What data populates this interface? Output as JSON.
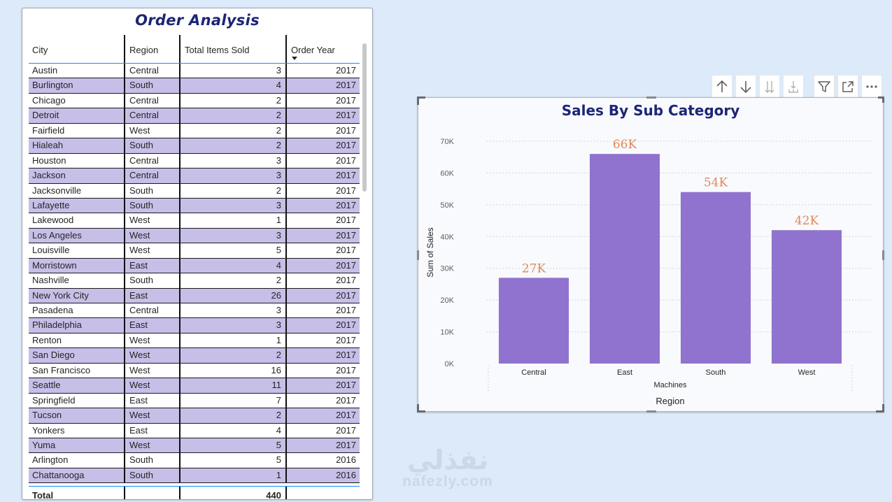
{
  "table": {
    "title": "Order Analysis",
    "columns": [
      "City",
      "Region",
      "Total Items Sold",
      "Order Year"
    ],
    "rows": [
      [
        "Austin",
        "Central",
        "3",
        "2017"
      ],
      [
        "Burlington",
        "South",
        "4",
        "2017"
      ],
      [
        "Chicago",
        "Central",
        "2",
        "2017"
      ],
      [
        "Detroit",
        "Central",
        "2",
        "2017"
      ],
      [
        "Fairfield",
        "West",
        "2",
        "2017"
      ],
      [
        "Hialeah",
        "South",
        "2",
        "2017"
      ],
      [
        "Houston",
        "Central",
        "3",
        "2017"
      ],
      [
        "Jackson",
        "Central",
        "3",
        "2017"
      ],
      [
        "Jacksonville",
        "South",
        "2",
        "2017"
      ],
      [
        "Lafayette",
        "South",
        "3",
        "2017"
      ],
      [
        "Lakewood",
        "West",
        "1",
        "2017"
      ],
      [
        "Los Angeles",
        "West",
        "3",
        "2017"
      ],
      [
        "Louisville",
        "West",
        "5",
        "2017"
      ],
      [
        "Morristown",
        "East",
        "4",
        "2017"
      ],
      [
        "Nashville",
        "South",
        "2",
        "2017"
      ],
      [
        "New York City",
        "East",
        "26",
        "2017"
      ],
      [
        "Pasadena",
        "Central",
        "3",
        "2017"
      ],
      [
        "Philadelphia",
        "East",
        "3",
        "2017"
      ],
      [
        "Renton",
        "West",
        "1",
        "2017"
      ],
      [
        "San Diego",
        "West",
        "2",
        "2017"
      ],
      [
        "San Francisco",
        "West",
        "16",
        "2017"
      ],
      [
        "Seattle",
        "West",
        "11",
        "2017"
      ],
      [
        "Springfield",
        "East",
        "7",
        "2017"
      ],
      [
        "Tucson",
        "West",
        "2",
        "2017"
      ],
      [
        "Yonkers",
        "East",
        "4",
        "2017"
      ],
      [
        "Yuma",
        "West",
        "5",
        "2017"
      ],
      [
        "Arlington",
        "South",
        "5",
        "2016"
      ],
      [
        "Chattanooga",
        "South",
        "1",
        "2016"
      ]
    ],
    "total_label": "Total",
    "total_value": "440",
    "alt_row_color": "#c7bfe8",
    "sorted_column": "Order Year",
    "sort_direction": "descending"
  },
  "toolbar": {
    "icons": [
      "arrow-up-icon",
      "arrow-down-icon",
      "double-arrow-down-icon",
      "expand-hierarchy-icon",
      "filter-icon",
      "focus-mode-icon",
      "more-options-icon"
    ]
  },
  "watermark": {
    "arabic": "نفذلي",
    "latin": "nafezly.com"
  },
  "chart_data": {
    "type": "bar",
    "title": "Sales By Sub Category",
    "categories": [
      "Central",
      "East",
      "South",
      "West"
    ],
    "values": [
      27000,
      66000,
      54000,
      42000
    ],
    "data_labels": [
      "27K",
      "66K",
      "54K",
      "42K"
    ],
    "ylabel": "Sum of Sales",
    "xlabel": "Region",
    "x_group_label": "Machines",
    "ylim": [
      0,
      70000
    ],
    "yticks": [
      0,
      10000,
      20000,
      30000,
      40000,
      50000,
      60000,
      70000
    ],
    "ytick_labels": [
      "0K",
      "10K",
      "20K",
      "30K",
      "40K",
      "50K",
      "60K",
      "70K"
    ],
    "grid": true,
    "legend": "none",
    "bar_color": "#9073cf",
    "label_color": "#e08a5b"
  }
}
